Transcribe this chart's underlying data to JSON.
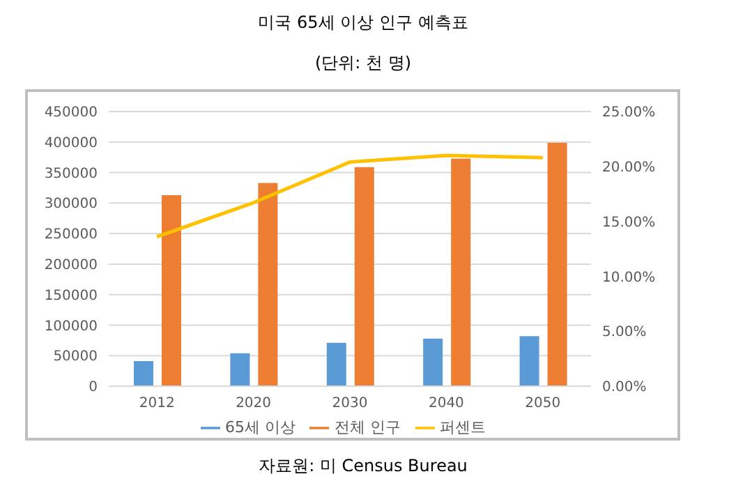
{
  "chart_data": {
    "type": "bar",
    "title": "미국 65세 이상 인구 예측표",
    "subtitle": "(단위: 천 명)",
    "categories": [
      "2012",
      "2020",
      "2030",
      "2040",
      "2050"
    ],
    "series": [
      {
        "name": "65세 이상",
        "color": "#5b9bd5",
        "values": [
          41000,
          54000,
          71000,
          78000,
          82000
        ]
      },
      {
        "name": "전체 인구",
        "color": "#ed7d31",
        "values": [
          313000,
          333000,
          359000,
          373000,
          399000
        ]
      },
      {
        "name": "퍼센트",
        "type": "line",
        "axis": "y2",
        "color": "#ffc000",
        "values": [
          13.6,
          16.7,
          20.4,
          21.0,
          20.8
        ]
      }
    ],
    "ylim": [
      0,
      450000
    ],
    "yticks": [
      0,
      50000,
      100000,
      150000,
      200000,
      250000,
      300000,
      350000,
      400000,
      450000
    ],
    "y2lim": [
      0,
      25
    ],
    "y2ticks": [
      {
        "value": 0,
        "label": "0.00%"
      },
      {
        "value": 5,
        "label": "5.00%"
      },
      {
        "value": 10,
        "label": "10.00%"
      },
      {
        "value": 15,
        "label": "15.00%"
      },
      {
        "value": 20,
        "label": "20.00%"
      },
      {
        "value": 25,
        "label": "25.00%"
      }
    ],
    "grid": "y",
    "legend": "bottom",
    "marker": "none",
    "annotations": [
      "자료원: 미 Census Bureau"
    ]
  }
}
